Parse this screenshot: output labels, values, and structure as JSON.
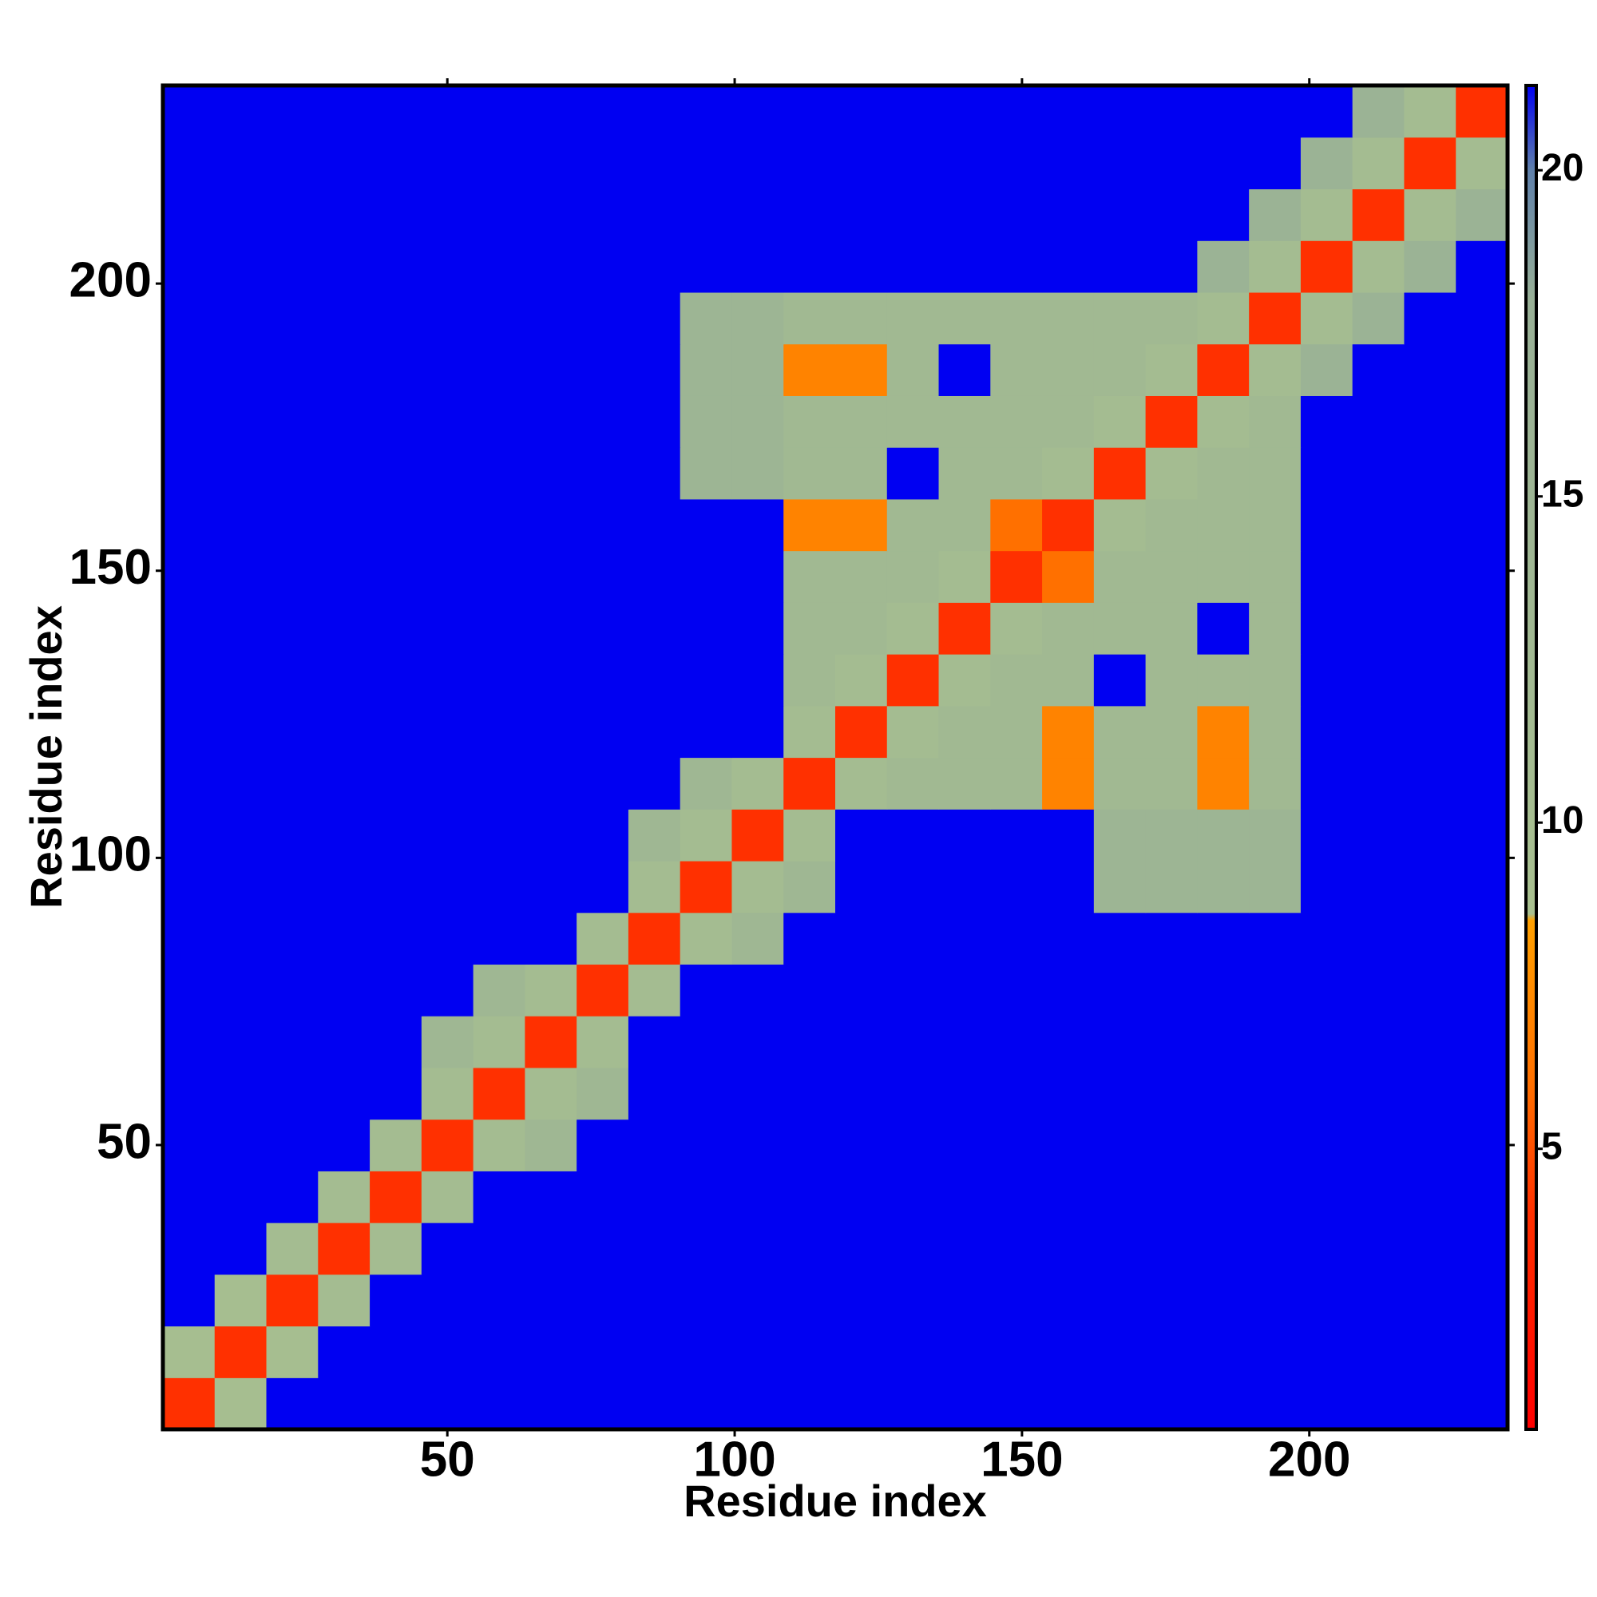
{
  "chart_data": {
    "type": "heatmap",
    "xlabel": "Residue index",
    "ylabel": "Residue index",
    "x": [
      5,
      14,
      23,
      32,
      41,
      50,
      59,
      68,
      77,
      86,
      95,
      104,
      113,
      122,
      131,
      140,
      149,
      158,
      167,
      176,
      185,
      194,
      203,
      212,
      221,
      230
    ],
    "y": [
      5,
      14,
      23,
      32,
      41,
      50,
      59,
      68,
      77,
      86,
      95,
      104,
      113,
      122,
      131,
      140,
      149,
      158,
      167,
      176,
      185,
      194,
      203,
      212,
      221,
      230
    ],
    "xlim": [
      0.5,
      234.5
    ],
    "ylim": [
      0.5,
      234.5
    ],
    "xticks": [
      50,
      100,
      150,
      200
    ],
    "yticks": [
      50,
      100,
      150,
      200
    ],
    "zlim": [
      0.7,
      21.3
    ],
    "zticks": [
      5,
      10,
      15,
      20
    ],
    "colorscale": [
      [
        0.7,
        "#ff0000"
      ],
      [
        4,
        "#ff3000"
      ],
      [
        6,
        "#ff7000"
      ],
      [
        8.5,
        "#ffa000"
      ],
      [
        8.6,
        "#a8c08f"
      ],
      [
        18,
        "#98b096"
      ],
      [
        20,
        "#5f80aa"
      ],
      [
        21.3,
        "#0000f2"
      ]
    ],
    "z": [
      [
        4,
        10,
        21.3,
        21.3,
        21.3,
        21.3,
        21.3,
        21.3,
        21.3,
        21.3,
        21.3,
        21.3,
        21.3,
        21.3,
        21.3,
        21.3,
        21.3,
        21.3,
        21.3,
        21.3,
        21.3,
        21.3,
        21.3,
        21.3,
        21.3,
        21.3
      ],
      [
        10,
        4,
        10,
        21.3,
        21.3,
        21.3,
        21.3,
        21.3,
        21.3,
        21.3,
        21.3,
        21.3,
        21.3,
        21.3,
        21.3,
        21.3,
        21.3,
        21.3,
        21.3,
        21.3,
        21.3,
        21.3,
        21.3,
        21.3,
        21.3,
        21.3
      ],
      [
        21.3,
        10,
        4,
        11,
        21.3,
        21.3,
        21.3,
        21.3,
        21.3,
        21.3,
        21.3,
        21.3,
        21.3,
        21.3,
        21.3,
        21.3,
        21.3,
        21.3,
        21.3,
        21.3,
        21.3,
        21.3,
        21.3,
        21.3,
        21.3,
        21.3
      ],
      [
        21.3,
        21.3,
        11,
        4,
        11,
        21.3,
        21.3,
        21.3,
        21.3,
        21.3,
        21.3,
        21.3,
        21.3,
        21.3,
        21.3,
        21.3,
        21.3,
        21.3,
        21.3,
        21.3,
        21.3,
        21.3,
        21.3,
        21.3,
        21.3,
        21.3
      ],
      [
        21.3,
        21.3,
        21.3,
        11,
        4,
        11,
        21.3,
        21.3,
        21.3,
        21.3,
        21.3,
        21.3,
        21.3,
        21.3,
        21.3,
        21.3,
        21.3,
        21.3,
        21.3,
        21.3,
        21.3,
        21.3,
        21.3,
        21.3,
        21.3,
        21.3
      ],
      [
        21.3,
        21.3,
        21.3,
        21.3,
        11,
        4,
        11,
        14,
        21.3,
        21.3,
        21.3,
        21.3,
        21.3,
        21.3,
        21.3,
        21.3,
        21.3,
        21.3,
        21.3,
        21.3,
        21.3,
        21.3,
        21.3,
        21.3,
        21.3,
        21.3
      ],
      [
        21.3,
        21.3,
        21.3,
        21.3,
        21.3,
        11,
        4,
        11,
        14,
        21.3,
        21.3,
        21.3,
        21.3,
        21.3,
        21.3,
        21.3,
        21.3,
        21.3,
        21.3,
        21.3,
        21.3,
        21.3,
        21.3,
        21.3,
        21.3,
        21.3
      ],
      [
        21.3,
        21.3,
        21.3,
        21.3,
        21.3,
        14,
        11,
        4,
        11,
        21.3,
        21.3,
        21.3,
        21.3,
        21.3,
        21.3,
        21.3,
        21.3,
        21.3,
        21.3,
        21.3,
        21.3,
        21.3,
        21.3,
        21.3,
        21.3,
        21.3
      ],
      [
        21.3,
        21.3,
        21.3,
        21.3,
        21.3,
        21.3,
        14,
        11,
        4,
        11,
        21.3,
        21.3,
        21.3,
        21.3,
        21.3,
        21.3,
        21.3,
        21.3,
        21.3,
        21.3,
        21.3,
        21.3,
        21.3,
        21.3,
        21.3,
        21.3
      ],
      [
        21.3,
        21.3,
        21.3,
        21.3,
        21.3,
        21.3,
        21.3,
        21.3,
        11,
        4,
        11,
        14,
        21.3,
        21.3,
        21.3,
        21.3,
        21.3,
        21.3,
        21.3,
        21.3,
        21.3,
        21.3,
        21.3,
        21.3,
        21.3,
        21.3
      ],
      [
        21.3,
        21.3,
        21.3,
        21.3,
        21.3,
        21.3,
        21.3,
        21.3,
        21.3,
        11,
        4,
        11,
        14,
        21.3,
        21.3,
        21.3,
        21.3,
        21.3,
        15,
        15,
        15,
        15,
        21.3,
        21.3,
        21.3,
        21.3
      ],
      [
        21.3,
        21.3,
        21.3,
        21.3,
        21.3,
        21.3,
        21.3,
        21.3,
        21.3,
        14,
        11,
        4,
        11,
        21.3,
        21.3,
        21.3,
        21.3,
        21.3,
        15,
        15,
        15,
        15,
        21.3,
        21.3,
        21.3,
        21.3
      ],
      [
        21.3,
        21.3,
        21.3,
        21.3,
        21.3,
        21.3,
        21.3,
        21.3,
        21.3,
        21.3,
        14,
        11,
        4,
        11,
        13,
        13,
        13,
        7,
        13,
        13,
        7,
        13,
        21.3,
        21.3,
        21.3,
        21.3
      ],
      [
        21.3,
        21.3,
        21.3,
        21.3,
        21.3,
        21.3,
        21.3,
        21.3,
        21.3,
        21.3,
        21.3,
        21.3,
        11,
        4,
        11,
        13,
        13,
        7,
        13,
        13,
        7,
        13,
        21.3,
        21.3,
        21.3,
        21.3
      ],
      [
        21.3,
        21.3,
        21.3,
        21.3,
        21.3,
        21.3,
        21.3,
        21.3,
        21.3,
        21.3,
        21.3,
        21.3,
        13,
        11,
        4,
        11,
        13,
        13,
        21.3,
        13,
        13,
        13,
        21.3,
        21.3,
        21.3,
        21.3
      ],
      [
        21.3,
        21.3,
        21.3,
        21.3,
        21.3,
        21.3,
        21.3,
        21.3,
        21.3,
        21.3,
        21.3,
        21.3,
        13,
        13,
        11,
        4,
        11,
        13,
        13,
        13,
        21.3,
        13,
        21.3,
        21.3,
        21.3,
        21.3
      ],
      [
        21.3,
        21.3,
        21.3,
        21.3,
        21.3,
        21.3,
        21.3,
        21.3,
        21.3,
        21.3,
        21.3,
        21.3,
        13,
        13,
        13,
        11,
        4,
        6,
        13,
        13,
        13,
        13,
        21.3,
        21.3,
        21.3,
        21.3
      ],
      [
        21.3,
        21.3,
        21.3,
        21.3,
        21.3,
        21.3,
        21.3,
        21.3,
        21.3,
        21.3,
        21.3,
        21.3,
        7,
        7,
        13,
        13,
        6,
        4,
        11,
        13,
        13,
        13,
        21.3,
        21.3,
        21.3,
        21.3
      ],
      [
        21.3,
        21.3,
        21.3,
        21.3,
        21.3,
        21.3,
        21.3,
        21.3,
        21.3,
        21.3,
        15,
        15,
        13,
        13,
        21.3,
        13,
        13,
        11,
        4,
        11,
        13,
        13,
        21.3,
        21.3,
        21.3,
        21.3
      ],
      [
        21.3,
        21.3,
        21.3,
        21.3,
        21.3,
        21.3,
        21.3,
        21.3,
        21.3,
        21.3,
        15,
        15,
        13,
        13,
        13,
        13,
        13,
        13,
        11,
        4,
        11,
        13,
        21.3,
        21.3,
        21.3,
        21.3
      ],
      [
        21.3,
        21.3,
        21.3,
        21.3,
        21.3,
        21.3,
        21.3,
        21.3,
        21.3,
        21.3,
        15,
        15,
        7,
        7,
        13,
        21.3,
        13,
        13,
        13,
        11,
        4,
        11,
        16,
        21.3,
        21.3,
        21.3
      ],
      [
        21.3,
        21.3,
        21.3,
        21.3,
        21.3,
        21.3,
        21.3,
        21.3,
        21.3,
        21.3,
        15,
        15,
        13,
        13,
        13,
        13,
        13,
        13,
        13,
        13,
        11,
        4,
        11,
        16,
        21.3,
        21.3
      ],
      [
        21.3,
        21.3,
        21.3,
        21.3,
        21.3,
        21.3,
        21.3,
        21.3,
        21.3,
        21.3,
        21.3,
        21.3,
        21.3,
        21.3,
        21.3,
        21.3,
        21.3,
        21.3,
        21.3,
        21.3,
        16,
        11,
        4,
        11,
        16,
        21.3
      ],
      [
        21.3,
        21.3,
        21.3,
        21.3,
        21.3,
        21.3,
        21.3,
        21.3,
        21.3,
        21.3,
        21.3,
        21.3,
        21.3,
        21.3,
        21.3,
        21.3,
        21.3,
        21.3,
        21.3,
        21.3,
        21.3,
        16,
        11,
        4,
        11,
        16
      ],
      [
        21.3,
        21.3,
        21.3,
        21.3,
        21.3,
        21.3,
        21.3,
        21.3,
        21.3,
        21.3,
        21.3,
        21.3,
        21.3,
        21.3,
        21.3,
        21.3,
        21.3,
        21.3,
        21.3,
        21.3,
        21.3,
        21.3,
        16,
        11,
        4,
        11
      ],
      [
        21.3,
        21.3,
        21.3,
        21.3,
        21.3,
        21.3,
        21.3,
        21.3,
        21.3,
        21.3,
        21.3,
        21.3,
        21.3,
        21.3,
        21.3,
        21.3,
        21.3,
        21.3,
        21.3,
        21.3,
        21.3,
        21.3,
        21.3,
        16,
        11,
        4
      ]
    ]
  }
}
